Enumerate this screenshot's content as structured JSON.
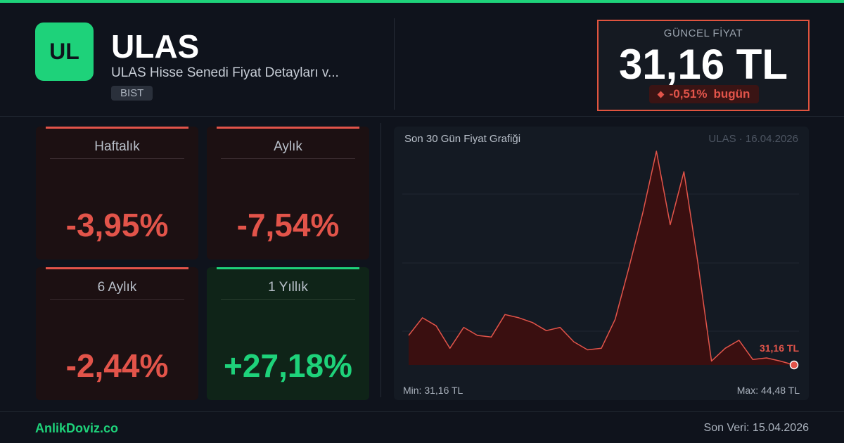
{
  "header": {
    "logo_text": "UL",
    "ticker": "ULAS",
    "subtitle": "ULAS Hisse Senedi Fiyat Detayları v...",
    "market": "BIST"
  },
  "price": {
    "label": "GÜNCEL FİYAT",
    "value": "31,16 TL",
    "change": "-0,51%",
    "change_suffix": "bugün"
  },
  "cards": [
    {
      "label": "Haftalık",
      "value": "-3,95%",
      "trend": "negative"
    },
    {
      "label": "Aylık",
      "value": "-7,54%",
      "trend": "negative"
    },
    {
      "label": "6 Aylık",
      "value": "-2,44%",
      "trend": "negative"
    },
    {
      "label": "1 Yıllık",
      "value": "+27,18%",
      "trend": "positive"
    }
  ],
  "chart": {
    "title": "Son 30 Gün Fiyat Grafiği",
    "meta": "ULAS · 16.04.2026",
    "min_label": "Min: 31,16 TL",
    "max_label": "Max: 44,48 TL",
    "last_label": "31,16 TL"
  },
  "chart_data": {
    "type": "area",
    "title": "Son 30 Gün Fiyat Grafiği",
    "xlabel": "",
    "ylabel": "",
    "ylim": [
      31.16,
      44.48
    ],
    "grid": true,
    "series": [
      {
        "values": [
          33.0,
          34.1,
          33.6,
          32.2,
          33.5,
          33.0,
          32.9,
          34.3,
          34.1,
          33.8,
          33.3,
          33.5,
          32.6,
          32.1,
          32.2,
          34.0,
          37.2,
          40.6,
          44.48,
          39.9,
          43.2,
          37.6,
          31.4,
          32.2,
          32.7,
          31.5,
          31.6,
          31.4,
          31.16
        ]
      }
    ],
    "line_color": "#e2544a",
    "fill_color": "#3a0f10"
  },
  "footer": {
    "brand": "AnlikDoviz.co",
    "last_update": "Son Veri: 15.04.2026"
  },
  "colors": {
    "accent_green": "#1ed27a",
    "accent_red": "#e2544a",
    "background": "#0f131c"
  }
}
